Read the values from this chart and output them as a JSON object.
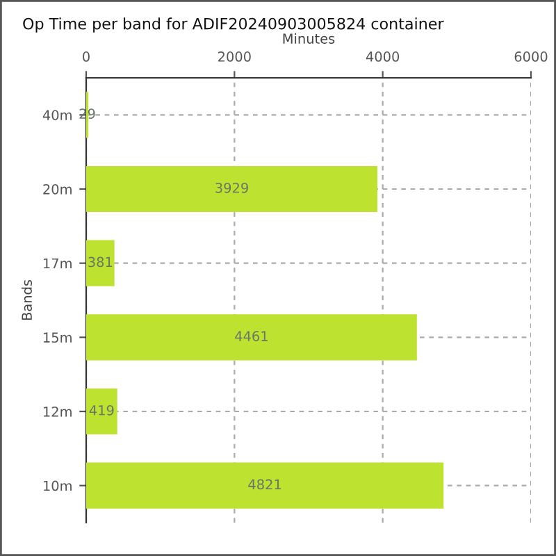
{
  "chart_data": {
    "type": "bar",
    "orientation": "horizontal",
    "title": "Op Time per band for ADIF20240903005824 container",
    "xlabel": "Minutes",
    "ylabel": "Bands",
    "categories": [
      "40m",
      "20m",
      "17m",
      "15m",
      "12m",
      "10m"
    ],
    "values": [
      29,
      3929,
      381,
      4461,
      419,
      4821
    ],
    "color": "#bde22f",
    "xlim": [
      0,
      6000
    ],
    "xticks": [
      0,
      2000,
      4000,
      6000
    ],
    "grid": true,
    "data_labels": true
  }
}
